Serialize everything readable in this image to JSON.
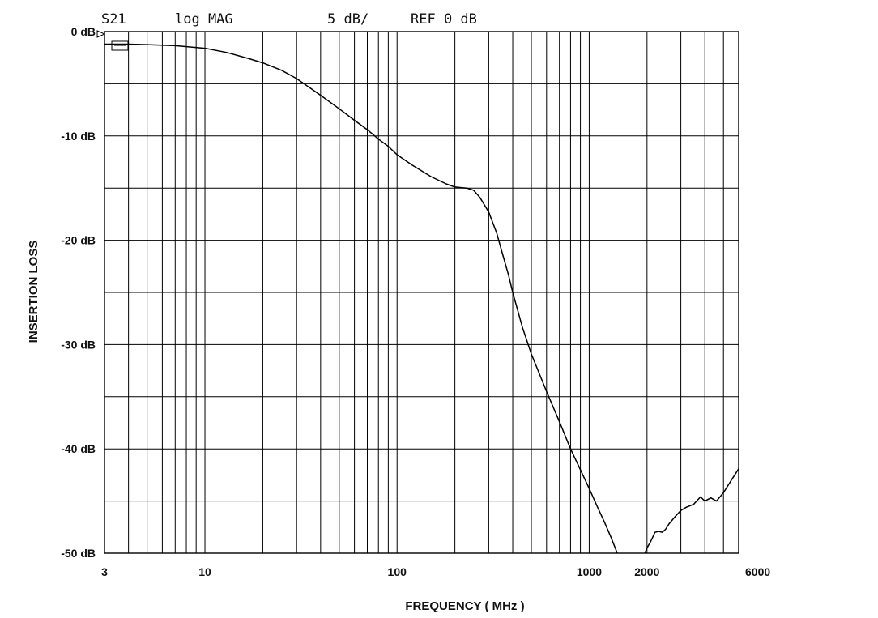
{
  "header": {
    "param": "S21",
    "format": "log MAG",
    "scale": "5 dB/",
    "ref": "REF 0 dB"
  },
  "chart_data": {
    "type": "line",
    "xlabel": "FREQUENCY ( MHz )",
    "ylabel": "INSERTION LOSS",
    "x_scale": "log",
    "xlim": [
      3,
      6000
    ],
    "ylim": [
      -50,
      0
    ],
    "x_ticks": [
      {
        "value": 3,
        "label": "3"
      },
      {
        "value": 10,
        "label": "10"
      },
      {
        "value": 100,
        "label": "100"
      },
      {
        "value": 1000,
        "label": "1000"
      },
      {
        "value": 2000,
        "label": "2000"
      },
      {
        "value": 6000,
        "label": "6000"
      }
    ],
    "y_ticks": [
      {
        "value": 0,
        "label": "0 dB"
      },
      {
        "value": -10,
        "label": "-10 dB"
      },
      {
        "value": -20,
        "label": "-20 dB"
      },
      {
        "value": -30,
        "label": "-30 dB"
      },
      {
        "value": -40,
        "label": "-40 dB"
      },
      {
        "value": -50,
        "label": "-50 dB"
      }
    ],
    "grid": true,
    "series": [
      {
        "segments": [
          {
            "x": [
              3,
              4,
              5,
              7,
              10,
              13,
              17,
              20,
              25,
              30,
              40,
              50,
              60,
              70,
              80,
              90,
              100,
              120,
              150,
              180,
              200,
              230,
              250,
              270,
              300,
              330,
              350,
              380,
              400,
              450,
              500,
              600,
              700,
              800,
              900,
              1000,
              1100,
              1200,
              1300,
              1400
            ],
            "y": [
              -1.2,
              -1.2,
              -1.25,
              -1.35,
              -1.6,
              -2.0,
              -2.6,
              -3.0,
              -3.7,
              -4.5,
              -6.1,
              -7.4,
              -8.5,
              -9.4,
              -10.3,
              -11.0,
              -11.8,
              -12.8,
              -13.9,
              -14.6,
              -14.9,
              -15.0,
              -15.2,
              -15.9,
              -17.3,
              -19.3,
              -21.0,
              -23.3,
              -25.0,
              -28.4,
              -30.9,
              -34.5,
              -37.4,
              -40.0,
              -42.0,
              -43.8,
              -45.5,
              -47.0,
              -48.5,
              -50.0
            ]
          },
          {
            "x": [
              1950,
              2000,
              2100,
              2200,
              2300,
              2400,
              2500,
              2600,
              2800,
              3000,
              3200,
              3500,
              3800,
              4000,
              4300,
              4600,
              5000,
              5500,
              6000
            ],
            "y": [
              -50.0,
              -49.5,
              -48.8,
              -48.0,
              -47.9,
              -48.0,
              -47.7,
              -47.2,
              -46.5,
              -45.9,
              -45.6,
              -45.3,
              -44.6,
              -45.0,
              -44.7,
              -45.0,
              -44.2,
              -43.0,
              -41.9
            ]
          }
        ]
      }
    ]
  }
}
